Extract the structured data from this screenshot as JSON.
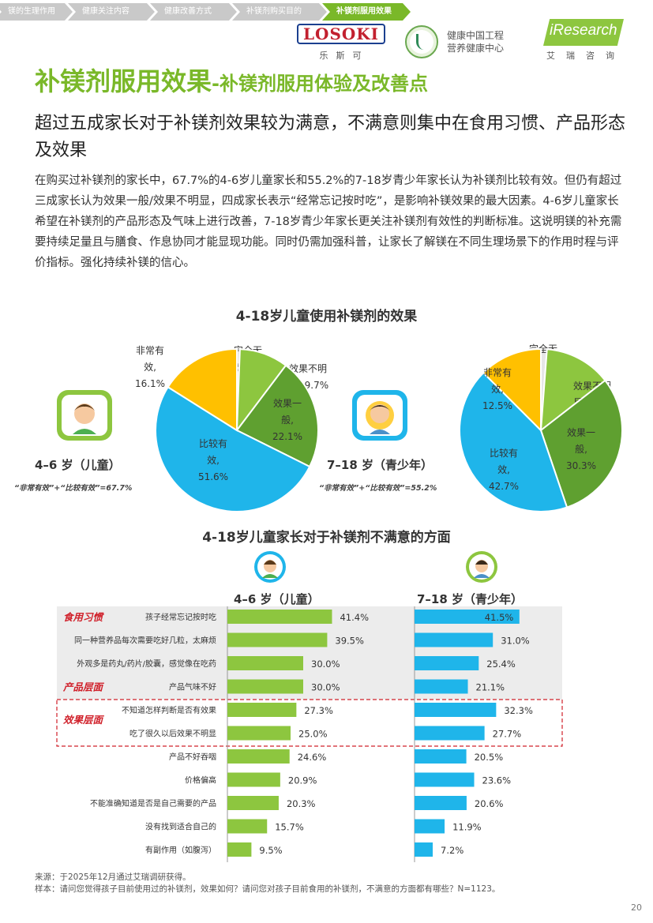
{
  "breadcrumbs": [
    {
      "label": "镁的生理作用",
      "active": false
    },
    {
      "label": "健康关注内容",
      "active": false
    },
    {
      "label": "健康改善方式",
      "active": false
    },
    {
      "label": "补镁剂购买目的",
      "active": false
    },
    {
      "label": "补镁剂服用效果",
      "active": true
    }
  ],
  "logos": {
    "losoki": "LOSOKI",
    "losoki_cn": "乐斯可",
    "center_line1": "健康中国工程",
    "center_line2": "营养健康中心",
    "iresearch": "iResearch",
    "iresearch_cn": "艾瑞咨询"
  },
  "title": {
    "main": "补镁剂服用效果",
    "sub": "-补镁剂服用体验及改善点"
  },
  "headline": "超过五成家长对于补镁剂效果较为满意，不满意则集中在食用习惯、产品形态及效果",
  "body": "在购买过补镁剂的家长中，67.7%的4-6岁儿童家长和55.2%的7-18岁青少年家长认为补镁剂比较有效。但仍有超过三成家长认为效果一般/效果不明显，四成家长表示“经常忘记按时吃”，是影响补镁效果的最大因素。4-6岁儿童家长希望在补镁剂的产品形态及气味上进行改善，7-18岁青少年家长更关注补镁剂有效性的判断标准。这说明镁的补充需要持续足量且与膳食、作息协同才能显现功能。同时仍需加强科普，让家长了解镁在不同生理场景下的作用时程与评价指标。强化持续补镁的信心。",
  "pie_section_title": "4-18岁儿童使用补镁剂的效果",
  "bar_section_title": "4-18岁儿童家长对于补镁剂不满意的方面",
  "groups": {
    "child": {
      "title": "4–6 岁（儿童）",
      "note": "“非常有效”+“比较有效”=67.7%"
    },
    "teen": {
      "title": "7–18 岁（青少年）",
      "note": "“非常有效”+“比较有效”=55.2%"
    }
  },
  "colors": {
    "very": "#ffc000",
    "fairly": "#1fb5ea",
    "average": "#5fa030",
    "unclear": "#8dc63f",
    "none": "#e6e6e6",
    "accent": "#7ab829",
    "red": "#d0202a"
  },
  "chart_data": [
    {
      "type": "pie",
      "title": "4–6 岁（儿童）",
      "slices": [
        {
          "label": "完全无效",
          "value": 0.6,
          "display": [
            "完全无",
            "效, 0.6%"
          ]
        },
        {
          "label": "效果不明显",
          "value": 9.7,
          "display": [
            "效果不明",
            "显, 9.7%"
          ]
        },
        {
          "label": "效果一般",
          "value": 22.1,
          "display": [
            "效果一",
            "般,",
            "22.1%"
          ]
        },
        {
          "label": "比较有效",
          "value": 51.6,
          "display": [
            "比较有",
            "效,",
            "51.6%"
          ]
        },
        {
          "label": "非常有效",
          "value": 16.1,
          "display": [
            "非常有",
            "效,",
            "16.1%"
          ]
        }
      ]
    },
    {
      "type": "pie",
      "title": "7–18 岁（青少年）",
      "slices": [
        {
          "label": "完全无效",
          "value": 1.2,
          "display": [
            "完全无",
            "效, 1.2%"
          ]
        },
        {
          "label": "效果不明显",
          "value": 13.3,
          "display": [
            "效果不明",
            "显, 13.3%"
          ]
        },
        {
          "label": "效果一般",
          "value": 30.3,
          "display": [
            "效果一",
            "般,",
            "30.3%"
          ]
        },
        {
          "label": "比较有效",
          "value": 42.7,
          "display": [
            "比较有",
            "效,",
            "42.7%"
          ]
        },
        {
          "label": "非常有效",
          "value": 12.5,
          "display": [
            "非常有",
            "效,",
            "12.5%"
          ]
        }
      ]
    },
    {
      "type": "bar",
      "orientation": "horizontal",
      "title": "4-18岁儿童家长对于补镁剂不满意的方面",
      "groups": [
        {
          "label": "食用习惯",
          "rows": [
            0,
            1
          ]
        },
        {
          "label": "产品层面",
          "rows": [
            2,
            3
          ]
        },
        {
          "label": "效果层面",
          "rows": [
            4,
            5
          ]
        }
      ],
      "categories": [
        "孩子经常忘记按时吃",
        "同一种营养品每次需要吃好几粒，太麻烦",
        "外观多是药丸/药片/胶囊，感觉像在吃药",
        "产品气味不好",
        "不知道怎样判断是否有效果",
        "吃了很久以后效果不明显",
        "产品不好吞咽",
        "价格偏高",
        "不能准确知道是否是自己需要的产品",
        "没有找到适合自己的",
        "有副作用（如腹泻）"
      ],
      "series": [
        {
          "name": "4–6 岁（儿童）",
          "values": [
            41.4,
            39.5,
            30.0,
            30.0,
            27.3,
            25.0,
            24.6,
            20.9,
            20.3,
            15.7,
            9.5
          ]
        },
        {
          "name": "7–18 岁（青少年）",
          "values": [
            41.5,
            31.0,
            25.4,
            21.1,
            32.3,
            27.7,
            20.5,
            23.6,
            20.6,
            11.9,
            7.2
          ]
        }
      ]
    }
  ],
  "footer": {
    "source": "来源：于2025年12月通过艾瑞调研获得。",
    "sample": "样本：请问您觉得孩子目前使用过的补镁剂，效果如何？请问您对孩子目前食用的补镁剂，不满意的方面都有哪些？N=1123。"
  },
  "page_number": "20"
}
